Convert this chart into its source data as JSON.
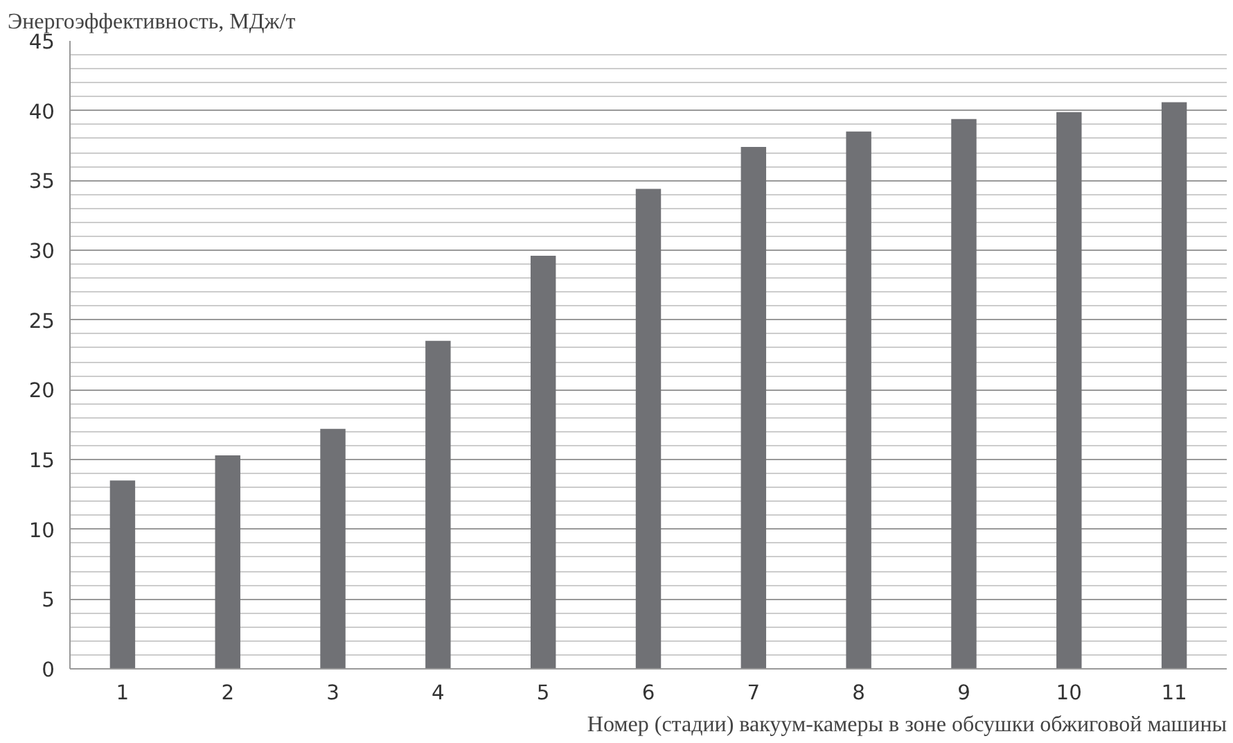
{
  "chart_data": {
    "type": "bar",
    "ylabel": "Энергоэффективность, МДж/т",
    "xlabel": "Номер (стадии) вакуум-камеры в зоне обсушки обжиговой машины",
    "categories": [
      "1",
      "2",
      "3",
      "4",
      "5",
      "6",
      "7",
      "8",
      "9",
      "10",
      "11"
    ],
    "values": [
      13.5,
      15.3,
      17.2,
      23.5,
      29.6,
      34.4,
      37.4,
      38.5,
      39.4,
      39.9,
      40.6
    ],
    "color": "#707175",
    "ylim": [
      0,
      45
    ],
    "yticks": [
      0,
      5,
      10,
      15,
      20,
      25,
      30,
      35,
      40,
      45
    ],
    "grid": "y"
  }
}
